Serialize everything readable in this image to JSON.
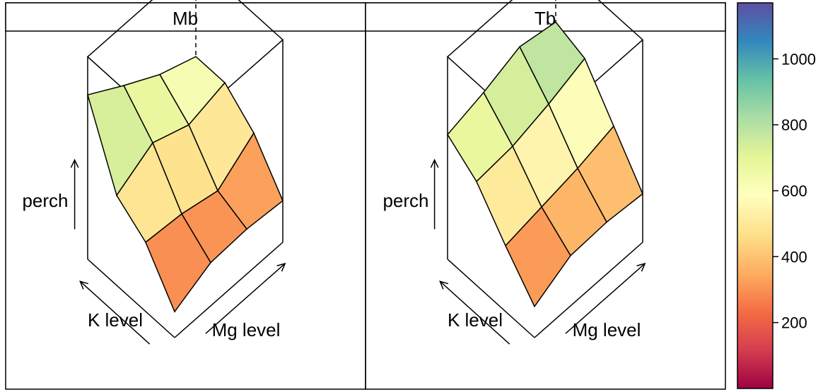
{
  "chart_data": [
    {
      "type": "surface3d",
      "panel": "Mb",
      "zlabel": "perch",
      "xlabel": "K level",
      "ylabel": "Mg level",
      "grid_shape": [
        4,
        4
      ],
      "z_values": [
        [
          150,
          250,
          260,
          240
        ],
        [
          400,
          380,
          330,
          480
        ],
        [
          520,
          640,
          560,
          620
        ],
        [
          950,
          820,
          700,
          620
        ]
      ]
    },
    {
      "type": "surface3d",
      "panel": "Tb",
      "zlabel": "perch",
      "xlabel": "K level",
      "ylabel": "Mg level",
      "grid_shape": [
        4,
        4
      ],
      "z_values": [
        [
          180,
          290,
          300,
          280
        ],
        [
          380,
          420,
          460,
          520
        ],
        [
          600,
          620,
          680,
          760
        ],
        [
          720,
          780,
          860,
          820
        ]
      ]
    }
  ],
  "panels": [
    {
      "strip": "Mb"
    },
    {
      "strip": "Tb"
    }
  ],
  "axes": {
    "z": "perch",
    "x": "K level",
    "y": "Mg level"
  },
  "colorkey": {
    "range": [
      0,
      1170
    ],
    "ticks": [
      "200",
      "400",
      "600",
      "800",
      "1000"
    ],
    "tick_values": [
      200,
      400,
      600,
      800,
      1000
    ],
    "palette": [
      "#9E0142",
      "#D53E4F",
      "#F46D43",
      "#FDAE61",
      "#FEE08B",
      "#FFFFBF",
      "#E6F598",
      "#ABDDA4",
      "#66C2A5",
      "#3288BD",
      "#5E4FA2"
    ]
  }
}
